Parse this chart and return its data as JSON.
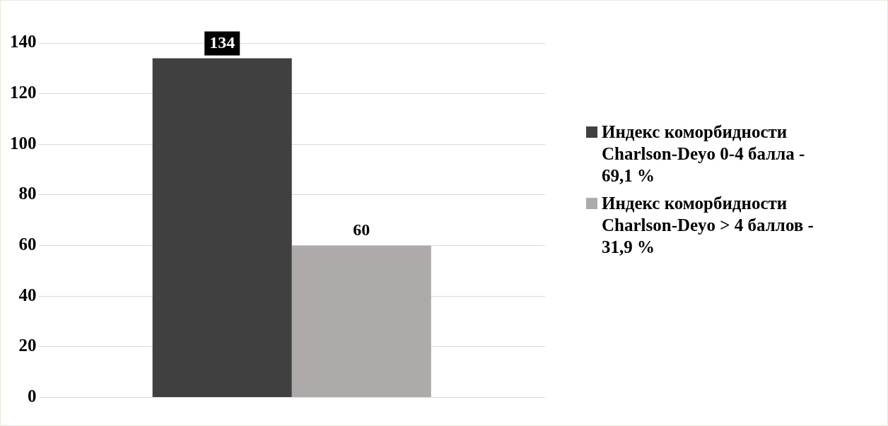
{
  "chart_data": {
    "type": "bar",
    "categories": [
      null
    ],
    "series": [
      {
        "name": "Индекс коморбидности Charlson-Deyo 0-4 балла - 69,1 %",
        "color": "#404040",
        "values": [
          134
        ]
      },
      {
        "name": "Индекс коморбидности Charlson-Deyo > 4 баллов - 31,9 %",
        "color": "#aeaaaa",
        "values": [
          60
        ]
      }
    ],
    "ylim": [
      0,
      140
    ],
    "yticks": [
      0,
      20,
      40,
      60,
      80,
      100,
      120,
      140
    ],
    "grid": "y",
    "legend": "right",
    "data_labels": true
  }
}
